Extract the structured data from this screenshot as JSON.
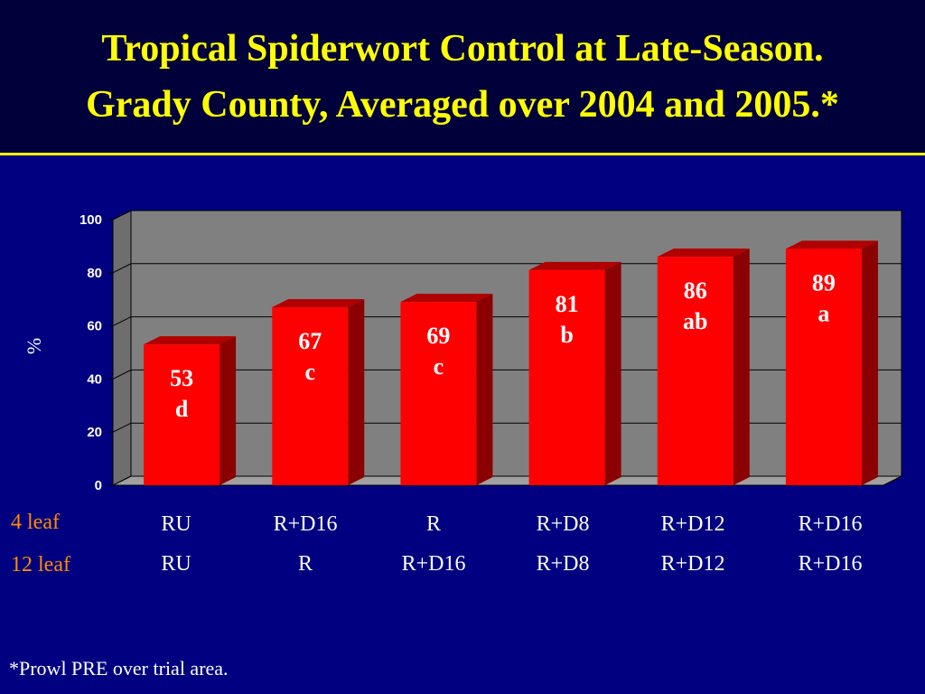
{
  "slide": {
    "title_line1": "Tropical Spiderwort Control at Late-Season.",
    "title_line2": "Grady County, Averaged over 2004 and 2005.*",
    "footnote": "*Prowl PRE over trial area."
  },
  "colors": {
    "background": "#000080",
    "title_band": "#00003a",
    "title_text": "#ffff00",
    "bar_front": "#ff0000",
    "bar_side": "#8b0000",
    "bar_top": "#b00000",
    "plot_back": "#808080",
    "row_label": "#ff8c00"
  },
  "chart_data": {
    "type": "bar",
    "title": "",
    "ylabel": "%",
    "ylim": [
      0,
      100
    ],
    "yticks": [
      0,
      20,
      40,
      60,
      80,
      100
    ],
    "grid": true,
    "row_labels": [
      "4 leaf",
      "12 leaf"
    ],
    "categories": [
      {
        "line1": "RU",
        "line2": "RU"
      },
      {
        "line1": "R+D16",
        "line2": "R"
      },
      {
        "line1": "R",
        "line2": "R+D16"
      },
      {
        "line1": "R+D8",
        "line2": "R+D8"
      },
      {
        "line1": "R+D12",
        "line2": "R+D12"
      },
      {
        "line1": "R+D16",
        "line2": "R+D16"
      }
    ],
    "values": [
      53,
      67,
      69,
      81,
      86,
      89
    ],
    "letters": [
      "d",
      "c",
      "c",
      "b",
      "ab",
      "a"
    ]
  }
}
